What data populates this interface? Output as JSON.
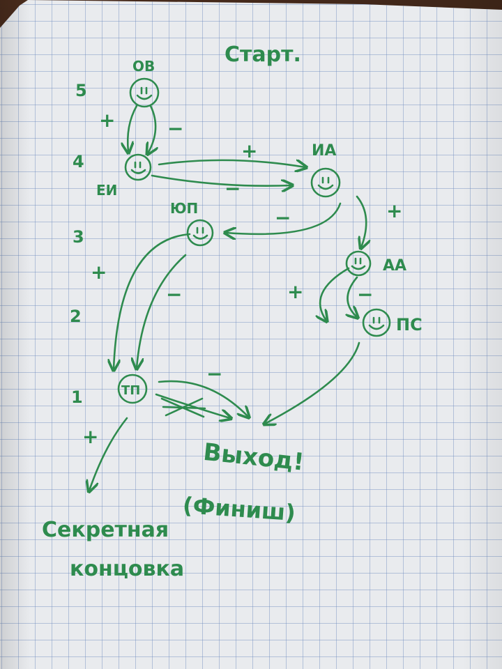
{
  "title": "Старт.",
  "levels": [
    "5",
    "4",
    "3",
    "2",
    "1"
  ],
  "nodes": {
    "ov": "ОВ",
    "ei": "ЕИ",
    "ia": "ИА",
    "yup": "ЮП",
    "aa": "АА",
    "ps": "ПС",
    "tp": "ТП"
  },
  "edge_labels": {
    "plus": "+",
    "minus": "−"
  },
  "exit_label": "Выход!",
  "finish_label": "(Финиш)",
  "secret_label_line1": "Секретная",
  "secret_label_line2": "концовка",
  "ink_color": "#2e8b4e"
}
